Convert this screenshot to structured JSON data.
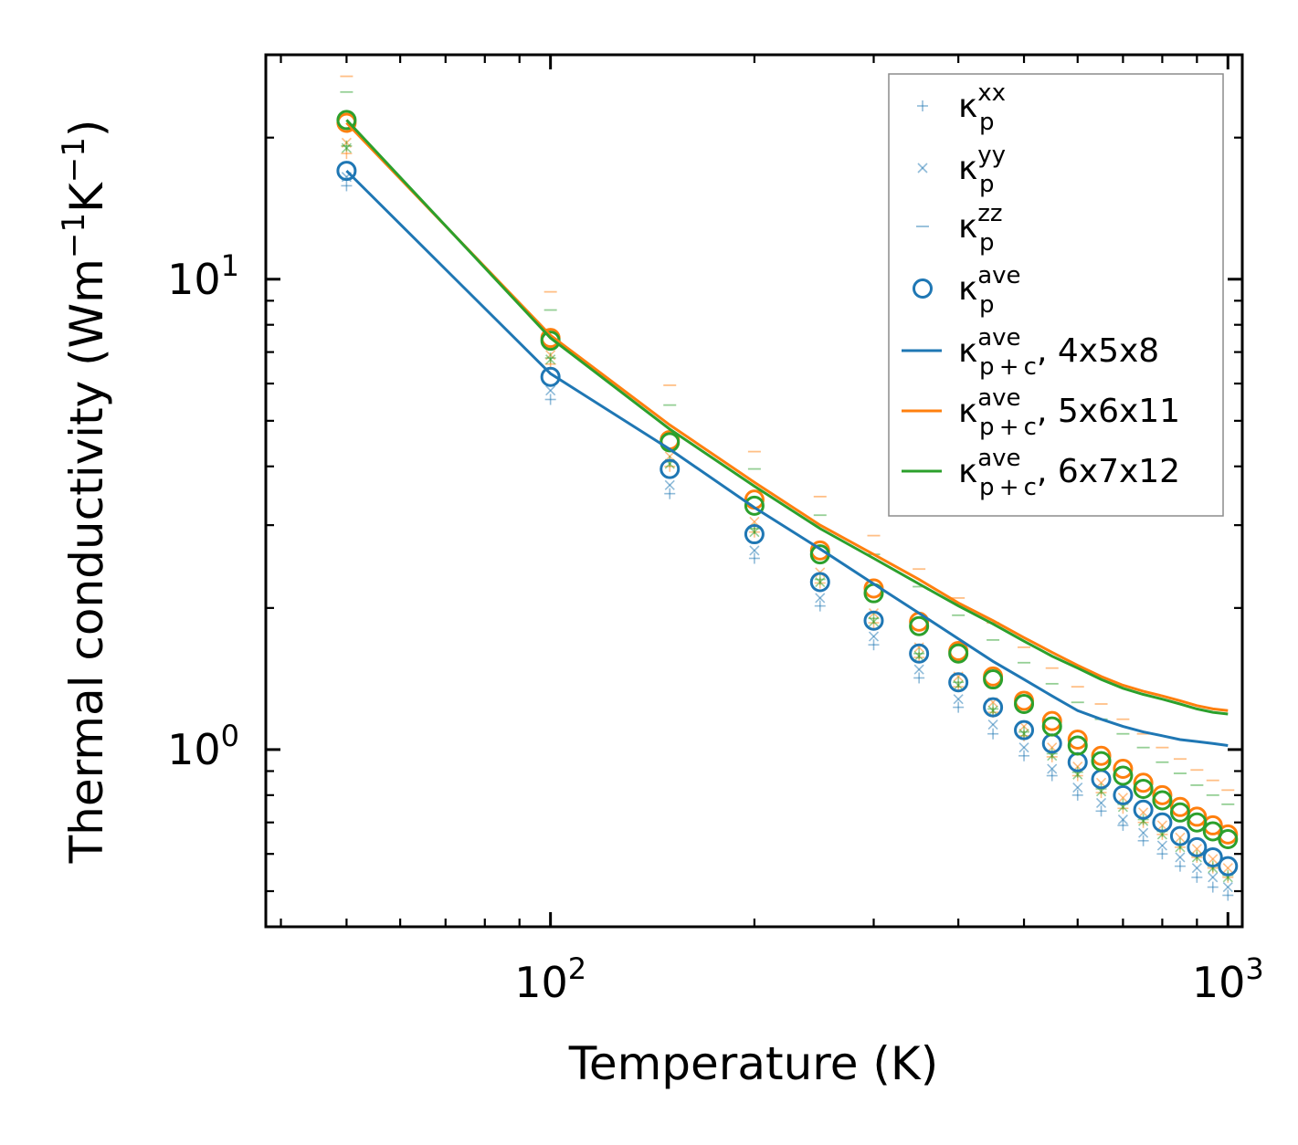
{
  "chart_data": {
    "type": "scatter",
    "xscale": "log",
    "yscale": "log",
    "xlabel": "Temperature (K)",
    "ylabel_parts": [
      "Thermal conductivity (Wm",
      "−1",
      "K",
      "−1",
      ")"
    ],
    "xlim": [
      38,
      1050
    ],
    "ylim": [
      0.42,
      30
    ],
    "xticks": [
      {
        "value": 100,
        "base": "10",
        "exp": "2"
      },
      {
        "value": 1000,
        "base": "10",
        "exp": "3"
      }
    ],
    "yticks": [
      {
        "value": 1,
        "base": "10",
        "exp": "0"
      },
      {
        "value": 10,
        "base": "10",
        "exp": "1"
      }
    ],
    "temperatures": [
      50,
      100,
      150,
      200,
      250,
      300,
      350,
      400,
      450,
      500,
      550,
      600,
      650,
      700,
      750,
      800,
      850,
      900,
      950,
      1000
    ],
    "colors": {
      "blue": "#1f77b4",
      "orange": "#ff7f0e",
      "green": "#2ca02c"
    },
    "marker_series": [
      {
        "name": "kp_xx 4x5x8",
        "component": "xx",
        "color": "#1f77b4",
        "values": [
          15.8,
          5.55,
          3.5,
          2.55,
          2.02,
          1.67,
          1.42,
          1.23,
          1.08,
          0.97,
          0.88,
          0.8,
          0.74,
          0.69,
          0.64,
          0.6,
          0.565,
          0.535,
          0.51,
          0.49
        ]
      },
      {
        "name": "kp_yy 4x5x8",
        "component": "yy",
        "color": "#1f77b4",
        "values": [
          16.5,
          5.8,
          3.65,
          2.65,
          2.1,
          1.74,
          1.48,
          1.28,
          1.13,
          1.01,
          0.91,
          0.83,
          0.77,
          0.71,
          0.665,
          0.625,
          0.59,
          0.56,
          0.535,
          0.51
        ]
      },
      {
        "name": "kp_xx 5x6x11",
        "component": "xx",
        "color": "#ff7f0e",
        "values": [
          18.5,
          6.6,
          4.0,
          2.9,
          2.26,
          1.86,
          1.57,
          1.36,
          1.2,
          1.07,
          0.965,
          0.88,
          0.81,
          0.75,
          0.7,
          0.66,
          0.62,
          0.59,
          0.56,
          0.535
        ]
      },
      {
        "name": "kp_yy 5x6x11",
        "component": "yy",
        "color": "#ff7f0e",
        "values": [
          19.5,
          6.9,
          4.2,
          3.05,
          2.38,
          1.95,
          1.65,
          1.43,
          1.26,
          1.12,
          1.01,
          0.92,
          0.85,
          0.79,
          0.735,
          0.69,
          0.65,
          0.615,
          0.585,
          0.56
        ]
      },
      {
        "name": "kp_zz 5x6x11",
        "component": "zz",
        "color": "#ff7f0e",
        "values": [
          27.0,
          9.4,
          5.95,
          4.3,
          3.45,
          2.85,
          2.42,
          2.1,
          1.86,
          1.65,
          1.49,
          1.36,
          1.25,
          1.16,
          1.08,
          1.01,
          0.955,
          0.905,
          0.86,
          0.82
        ]
      },
      {
        "name": "kp_xx 6x7x12",
        "component": "xx",
        "color": "#2ca02c",
        "values": [
          19.2,
          6.8,
          4.1,
          2.95,
          2.3,
          1.9,
          1.6,
          1.39,
          1.22,
          1.09,
          0.98,
          0.895,
          0.825,
          0.765,
          0.71,
          0.67,
          0.63,
          0.595,
          0.565,
          0.54
        ]
      },
      {
        "name": "kp_yy 6x7x12",
        "component": "yy",
        "color": "#2ca02c",
        "values": [
          19.0,
          6.75,
          4.05,
          2.9,
          2.27,
          1.87,
          1.58,
          1.37,
          1.21,
          1.08,
          0.97,
          0.885,
          0.815,
          0.755,
          0.705,
          0.66,
          0.62,
          0.59,
          0.56,
          0.535
        ]
      },
      {
        "name": "kp_zz 6x7x12",
        "component": "zz",
        "color": "#2ca02c",
        "values": [
          25.0,
          8.6,
          5.4,
          3.95,
          3.15,
          2.6,
          2.22,
          1.93,
          1.71,
          1.53,
          1.38,
          1.26,
          1.16,
          1.08,
          1.01,
          0.94,
          0.89,
          0.84,
          0.8,
          0.765
        ]
      },
      {
        "name": "kp_ave 4x5x8",
        "component": "ave",
        "color": "#1f77b4",
        "values": [
          17.0,
          6.2,
          3.95,
          2.87,
          2.27,
          1.88,
          1.6,
          1.39,
          1.23,
          1.1,
          1.03,
          0.94,
          0.865,
          0.8,
          0.745,
          0.7,
          0.655,
          0.62,
          0.59,
          0.565
        ]
      },
      {
        "name": "kp_ave 5x6x11",
        "component": "ave",
        "color": "#ff7f0e",
        "values": [
          21.5,
          7.5,
          4.55,
          3.4,
          2.65,
          2.2,
          1.87,
          1.62,
          1.43,
          1.27,
          1.15,
          1.05,
          0.97,
          0.91,
          0.85,
          0.8,
          0.755,
          0.72,
          0.69,
          0.66
        ]
      },
      {
        "name": "kp_ave 6x7x12",
        "component": "ave",
        "color": "#2ca02c",
        "values": [
          21.8,
          7.4,
          4.5,
          3.3,
          2.6,
          2.15,
          1.83,
          1.6,
          1.41,
          1.25,
          1.12,
          1.02,
          0.945,
          0.88,
          0.825,
          0.78,
          0.735,
          0.7,
          0.67,
          0.645
        ]
      }
    ],
    "line_series": [
      {
        "name": "kp+c_ave 4x5x8",
        "color": "#1f77b4",
        "values": [
          17.0,
          6.3,
          4.35,
          3.27,
          2.67,
          2.25,
          1.95,
          1.72,
          1.54,
          1.41,
          1.3,
          1.21,
          1.16,
          1.12,
          1.09,
          1.07,
          1.05,
          1.04,
          1.03,
          1.02
        ]
      },
      {
        "name": "kp+c_ave 5x6x11",
        "color": "#ff7f0e",
        "values": [
          21.5,
          7.6,
          4.9,
          3.7,
          3.0,
          2.6,
          2.3,
          2.05,
          1.88,
          1.73,
          1.61,
          1.51,
          1.43,
          1.37,
          1.33,
          1.3,
          1.27,
          1.24,
          1.22,
          1.21
        ]
      },
      {
        "name": "kp+c_ave 6x7x12",
        "color": "#2ca02c",
        "values": [
          21.8,
          7.5,
          4.8,
          3.63,
          2.95,
          2.55,
          2.25,
          2.02,
          1.85,
          1.7,
          1.58,
          1.49,
          1.41,
          1.35,
          1.31,
          1.28,
          1.25,
          1.22,
          1.2,
          1.19
        ]
      }
    ],
    "legend": {
      "placement": "top-right",
      "items": [
        {
          "kind": "plus",
          "color": "#1f77b4",
          "faded": true,
          "kappa": "κ",
          "sup": "xx",
          "sub": "p",
          "suffix": ""
        },
        {
          "kind": "x",
          "color": "#1f77b4",
          "faded": true,
          "kappa": "κ",
          "sup": "yy",
          "sub": "p",
          "suffix": ""
        },
        {
          "kind": "dash",
          "color": "#1f77b4",
          "faded": true,
          "kappa": "κ",
          "sup": "zz",
          "sub": "p",
          "suffix": ""
        },
        {
          "kind": "circle",
          "color": "#1f77b4",
          "faded": false,
          "kappa": "κ",
          "sup": "ave",
          "sub": "p",
          "suffix": ""
        },
        {
          "kind": "line",
          "color": "#1f77b4",
          "faded": false,
          "kappa": "κ",
          "sup": "ave",
          "sub": "p + c",
          "suffix": ", 4x5x8"
        },
        {
          "kind": "line",
          "color": "#ff7f0e",
          "faded": false,
          "kappa": "κ",
          "sup": "ave",
          "sub": "p + c",
          "suffix": ", 5x6x11"
        },
        {
          "kind": "line",
          "color": "#2ca02c",
          "faded": false,
          "kappa": "κ",
          "sup": "ave",
          "sub": "p + c",
          "suffix": ", 6x7x12"
        }
      ]
    }
  }
}
